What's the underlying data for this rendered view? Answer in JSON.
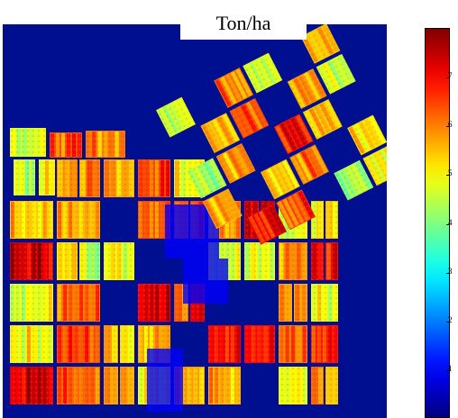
{
  "title": "Ton/ha",
  "colorbar": {
    "colormap": "jet",
    "min": 0,
    "max": 8,
    "ticks": [
      "1",
      "2",
      "3",
      "4",
      "5",
      "6",
      "7"
    ],
    "tick_values": [
      1,
      2,
      3,
      4,
      5,
      6,
      7
    ]
  },
  "map": {
    "background_color": "#000f8f",
    "description_value": "crop yield per field"
  }
}
